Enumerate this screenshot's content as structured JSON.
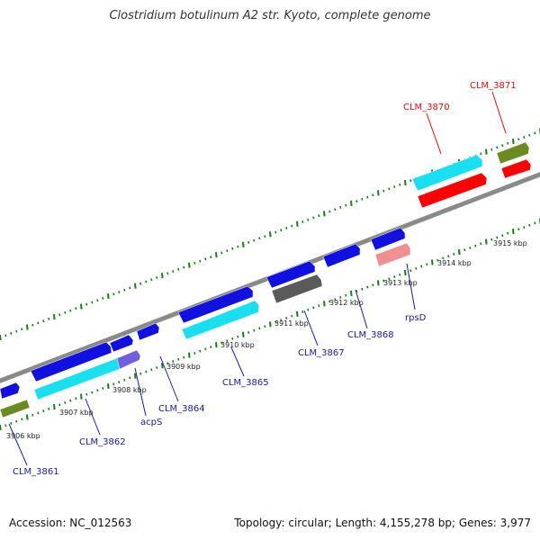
{
  "title": "Clostridium botulinum A2 str. Kyoto, complete genome",
  "footer": {
    "accession": "Accession: NC_012563",
    "summary": "Topology: circular; Length: 4,155,278 bp; Genes: 3,977"
  },
  "colors": {
    "backbone": "#8a8a8a",
    "ticks": "#1a7a1a",
    "blue_gene": "#1010e0",
    "cyan_gene": "#18e0f0",
    "red_gene": "#ff0000",
    "olive_gene": "#6b8a20",
    "gray_gene": "#5a5a5a",
    "pink_gene": "#f09090",
    "purple_gene": "#7060e0",
    "label_blue": "#1a1aa0",
    "label_red": "#e01010"
  },
  "kbp_ticks": [
    {
      "text": "3906 kbp"
    },
    {
      "text": "3907 kbp"
    },
    {
      "text": "3908 kbp"
    },
    {
      "text": "3909 kbp"
    },
    {
      "text": "3910 kbp"
    },
    {
      "text": "3911 kbp"
    },
    {
      "text": "3912 kbp"
    },
    {
      "text": "3913 kbp"
    },
    {
      "text": "3914 kbp"
    },
    {
      "text": "3915 kbp"
    }
  ],
  "gene_labels": [
    {
      "text": "CLM_3861",
      "color": "blue"
    },
    {
      "text": "CLM_3862",
      "color": "blue"
    },
    {
      "text": "acpS",
      "color": "blue"
    },
    {
      "text": "CLM_3864",
      "color": "blue"
    },
    {
      "text": "CLM_3865",
      "color": "blue"
    },
    {
      "text": "CLM_3867",
      "color": "blue"
    },
    {
      "text": "CLM_3868",
      "color": "blue"
    },
    {
      "text": "rpsD",
      "color": "blue"
    },
    {
      "text": "CLM_3870",
      "color": "red"
    },
    {
      "text": "CLM_3871",
      "color": "red"
    }
  ]
}
